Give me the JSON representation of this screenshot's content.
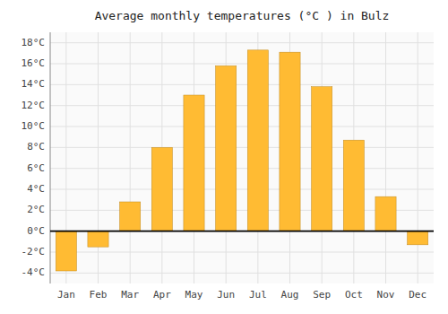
{
  "chart_data": {
    "type": "bar",
    "title": "Average monthly temperatures (°C ) in Bulz",
    "categories": [
      "Jan",
      "Feb",
      "Mar",
      "Apr",
      "May",
      "Jun",
      "Jul",
      "Aug",
      "Sep",
      "Oct",
      "Nov",
      "Dec"
    ],
    "values": [
      -3.8,
      -1.5,
      2.8,
      8.0,
      13.0,
      15.8,
      17.3,
      17.1,
      13.8,
      8.7,
      3.3,
      -1.3
    ],
    "color": "#FFBB33",
    "ylim": [
      -5,
      19
    ],
    "yticks": [
      {
        "value": -4,
        "label": "-4°C"
      },
      {
        "value": -2,
        "label": "-2°C"
      },
      {
        "value": 0,
        "label": "0°C"
      },
      {
        "value": 2,
        "label": "2°C"
      },
      {
        "value": 4,
        "label": "4°C"
      },
      {
        "value": 6,
        "label": "6°C"
      },
      {
        "value": 8,
        "label": "8°C"
      },
      {
        "value": 10,
        "label": "10°C"
      },
      {
        "value": 12,
        "label": "12°C"
      },
      {
        "value": 14,
        "label": "14°C"
      },
      {
        "value": 16,
        "label": "16°C"
      },
      {
        "value": 18,
        "label": "18°C"
      }
    ],
    "grid": true
  }
}
